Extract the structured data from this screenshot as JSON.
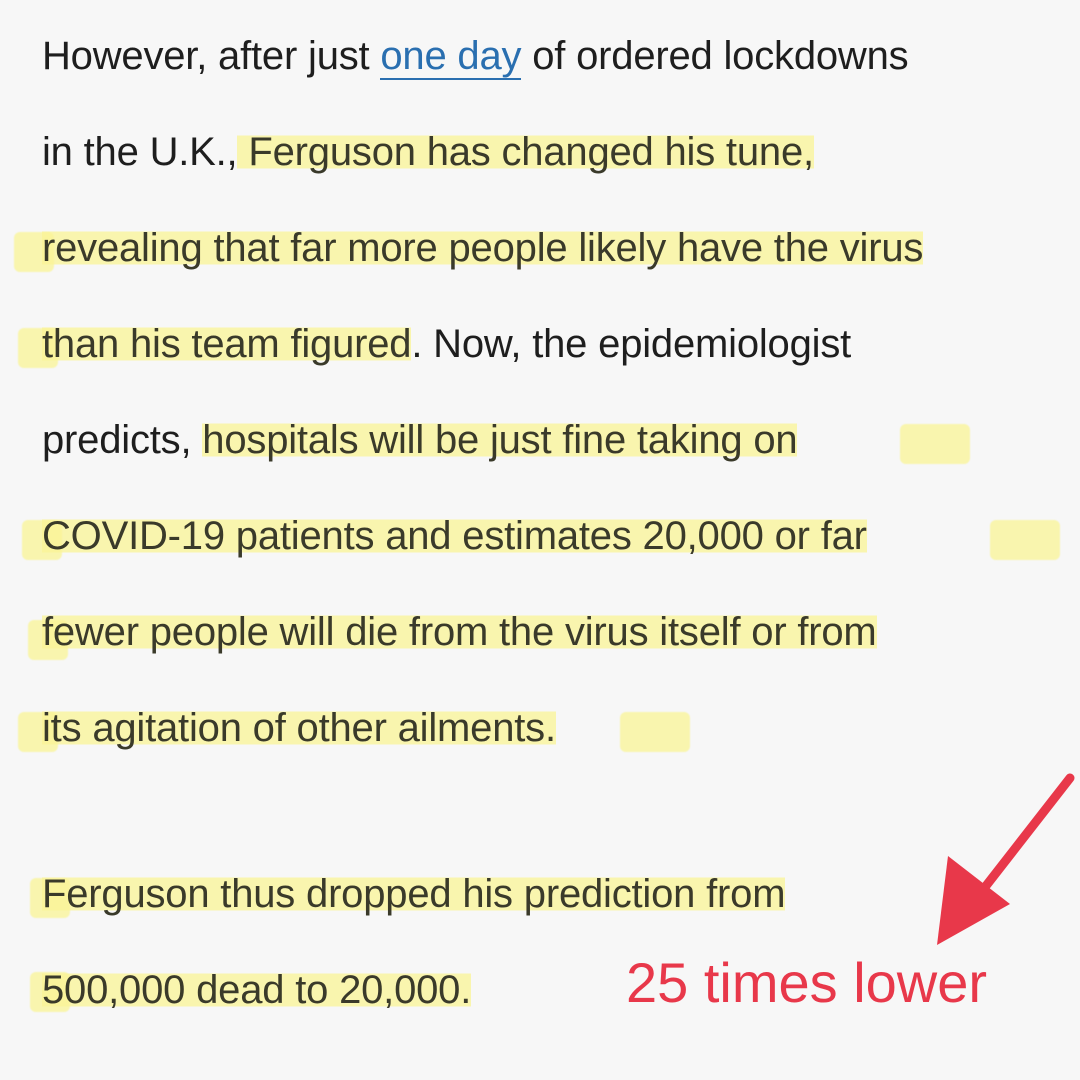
{
  "article": {
    "lines": [
      {
        "pre": "However, after just ",
        "link": "one day",
        "post": " of ordered lockdowns"
      },
      {
        "pre": "in the U.K.,",
        "hl": " Ferguson has changed his tune,"
      },
      {
        "hl": "revealing that far more people likely have the virus"
      },
      {
        "hl": "than his team figured",
        "post": ". Now, the epidemiologist"
      },
      {
        "pre": "predicts, ",
        "hl": "hospitals will be just fine taking on"
      },
      {
        "hl": "COVID-19 patients and estimates 20,000 or far"
      },
      {
        "hl": "fewer people will die from the virus itself or from"
      },
      {
        "hl": "its agitation of other ailments."
      },
      {
        "hl": "Ferguson thus dropped his prediction from"
      },
      {
        "hl": "500,000 dead to 20,000."
      }
    ]
  },
  "annotation": {
    "text": "25 times lower",
    "color": "#e8384a"
  },
  "colors": {
    "highlight": "#faf496",
    "link": "#2a6fb0"
  }
}
